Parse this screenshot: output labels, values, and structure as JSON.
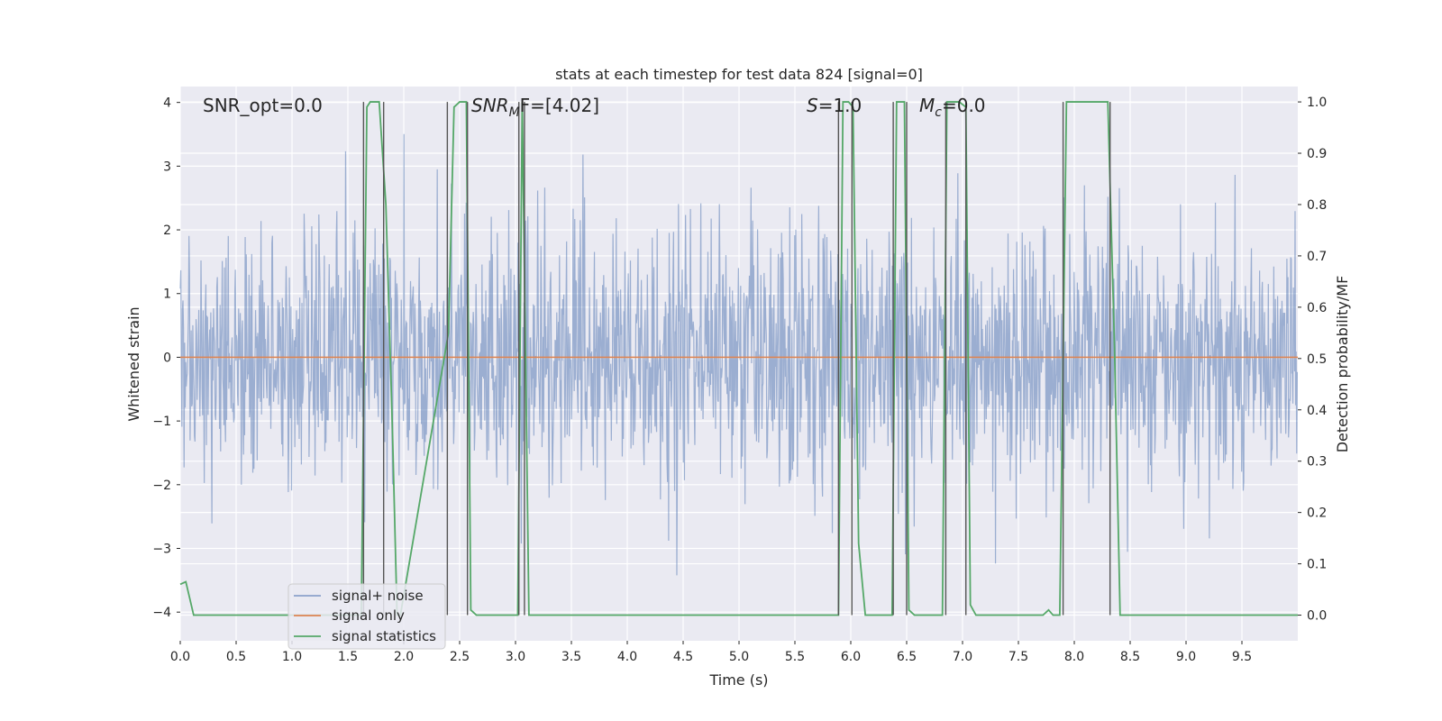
{
  "chart_data": {
    "type": "line",
    "title": "stats at each timestep for test data 824 [signal=0]",
    "xlabel": "Time (s)",
    "ylabel": "Whitened strain",
    "ylabel_right": "Detection probability/MF",
    "xlim": [
      0.0,
      10.0
    ],
    "ylim": [
      -4.45,
      4.25
    ],
    "ylim_right": [
      -0.05,
      1.03
    ],
    "x_ticks": [
      "0.0",
      "0.5",
      "1.0",
      "1.5",
      "2.0",
      "2.5",
      "3.0",
      "3.5",
      "4.0",
      "4.5",
      "5.0",
      "5.5",
      "6.0",
      "6.5",
      "7.0",
      "7.5",
      "8.0",
      "8.5",
      "9.0",
      "9.5"
    ],
    "y_ticks": [
      "4",
      "3",
      "2",
      "1",
      "0",
      "−1",
      "−2",
      "−3",
      "−4"
    ],
    "y_ticks_right": [
      "1.0",
      "0.9",
      "0.8",
      "0.7",
      "0.6",
      "0.5",
      "0.4",
      "0.3",
      "0.2",
      "0.1",
      "0.0"
    ],
    "grid": true,
    "annotations": {
      "snr_opt": "SNR_opt=0.0",
      "snr_mf_italic": "SNR",
      "snr_mf_sub": "M",
      "snr_mf_rest": "F=[4.02]",
      "s_italic": "S",
      "s_rest": "=1.0",
      "mc_italic": "M",
      "mc_sub": "c",
      "mc_rest": "=0.0"
    },
    "legend": {
      "placement": "lower-left",
      "entries": [
        "signal+ noise",
        "signal only",
        "signal statistics"
      ]
    },
    "colors": {
      "noise": "#4c72b0",
      "signal": "#dd8452",
      "stats": "#55a868",
      "vlines": "#555555",
      "axes_bg": "#eaeaf2"
    },
    "series": [
      {
        "name": "signal+ noise",
        "kind": "gaussian-noise",
        "std": 1.0,
        "samples": 2048,
        "axis": "left"
      },
      {
        "name": "signal only",
        "x": [
          0.0,
          10.0
        ],
        "values": [
          0.0,
          0.0
        ],
        "axis": "left"
      },
      {
        "name": "signal statistics",
        "axis": "right",
        "x": [
          0.0,
          0.05,
          0.12,
          0.2,
          1.62,
          1.67,
          1.7,
          1.78,
          1.84,
          1.9,
          1.94,
          1.97,
          2.4,
          2.45,
          2.5,
          2.56,
          2.6,
          2.65,
          2.9,
          3.02,
          3.06,
          3.12,
          3.17,
          5.89,
          5.93,
          5.98,
          6.02,
          6.07,
          6.13,
          6.37,
          6.41,
          6.48,
          6.52,
          6.57,
          6.82,
          6.86,
          6.97,
          7.03,
          7.07,
          7.12,
          7.72,
          7.77,
          7.81,
          7.87,
          7.93,
          8.3,
          8.36,
          8.41,
          10.0
        ],
        "values": [
          0.06,
          0.065,
          0.0,
          0.0,
          0.0,
          0.99,
          1.0,
          1.0,
          0.8,
          0.35,
          0.0,
          0.0,
          0.55,
          0.99,
          1.0,
          1.0,
          0.01,
          0.0,
          0.0,
          0.0,
          1.0,
          0.0,
          0.0,
          0.0,
          1.0,
          1.0,
          0.99,
          0.14,
          0.0,
          0.0,
          1.0,
          1.0,
          0.01,
          0.0,
          0.0,
          1.0,
          1.0,
          0.99,
          0.02,
          0.0,
          0.0,
          0.01,
          0.0,
          0.0,
          1.0,
          1.0,
          0.52,
          0.0,
          0.0
        ]
      }
    ],
    "vlines_x": [
      1.64,
      1.82,
      2.39,
      2.57,
      3.03,
      3.08,
      5.89,
      6.01,
      6.38,
      6.5,
      6.85,
      7.03,
      7.9,
      8.32
    ]
  }
}
